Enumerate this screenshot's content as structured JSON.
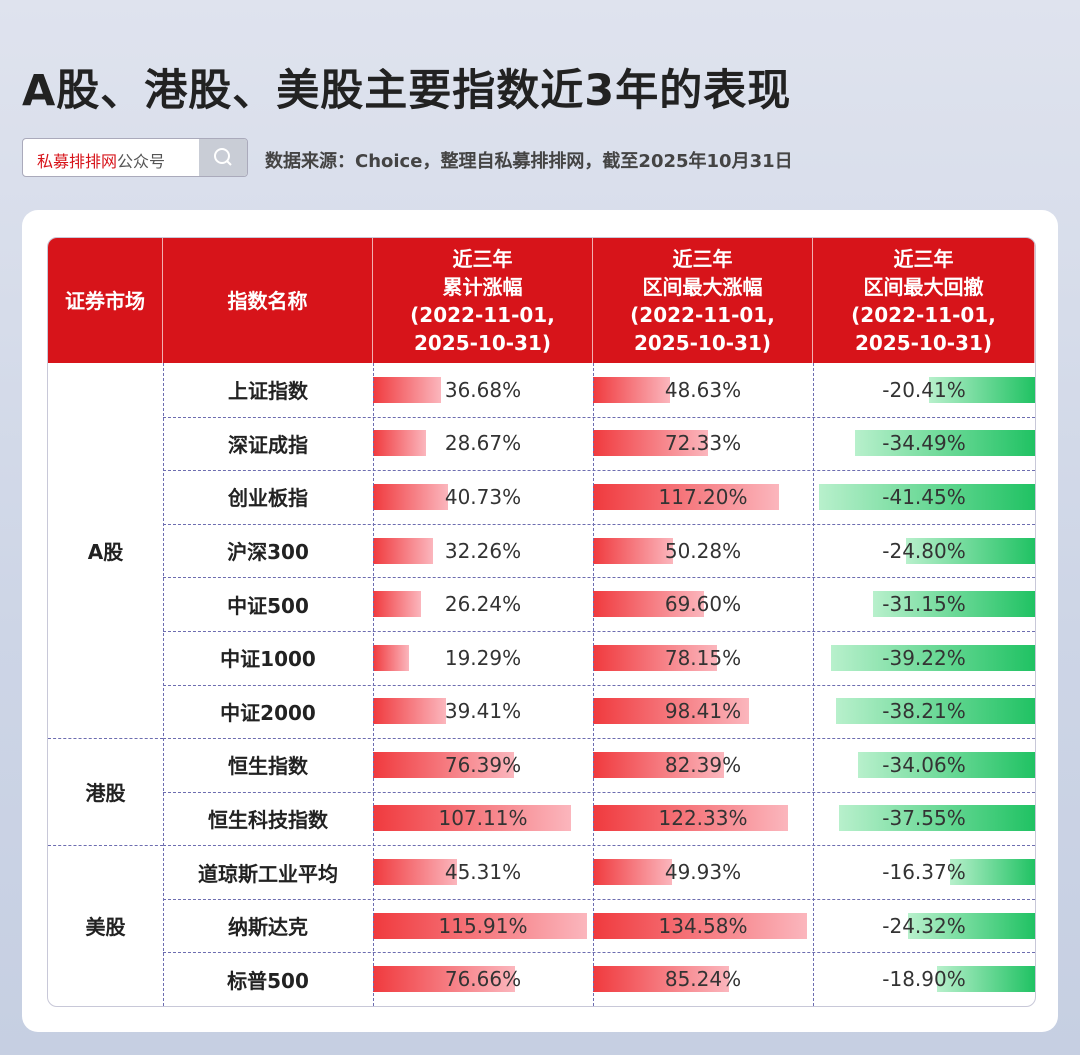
{
  "header": {
    "title": "A股、港股、美股主要指数近3年的表现",
    "search_brand": "私募排排网",
    "search_suffix": "公众号",
    "source": "数据来源：Choice，整理自私募排排网，截至2025年10月31日"
  },
  "table": {
    "columns": [
      [
        "证券市场"
      ],
      [
        "指数名称"
      ],
      [
        "近三年",
        "累计涨幅",
        "(2022-11-01,",
        "2025-10-31)"
      ],
      [
        "近三年",
        "区间最大涨幅",
        "(2022-11-01,",
        "2025-10-31)"
      ],
      [
        "近三年",
        "区间最大回撤",
        "(2022-11-01,",
        "2025-10-31)"
      ]
    ],
    "groups": [
      {
        "market": "A股",
        "rows": [
          {
            "name": "上证指数",
            "values": [
              36.68,
              48.63,
              -20.41
            ],
            "value_labels": [
              "36.68%",
              "48.63%",
              "-20.41%"
            ]
          },
          {
            "name": "深证成指",
            "values": [
              28.67,
              72.33,
              -34.49
            ],
            "value_labels": [
              "28.67%",
              "72.33%",
              "-34.49%"
            ]
          },
          {
            "name": "创业板指",
            "values": [
              40.73,
              117.2,
              -41.45
            ],
            "value_labels": [
              "40.73%",
              "117.20%",
              "-41.45%"
            ]
          },
          {
            "name": "沪深300",
            "values": [
              32.26,
              50.28,
              -24.8
            ],
            "value_labels": [
              "32.26%",
              "50.28%",
              "-24.80%"
            ]
          },
          {
            "name": "中证500",
            "values": [
              26.24,
              69.6,
              -31.15
            ],
            "value_labels": [
              "26.24%",
              "69.60%",
              "-31.15%"
            ]
          },
          {
            "name": "中证1000",
            "values": [
              19.29,
              78.15,
              -39.22
            ],
            "value_labels": [
              "19.29%",
              "78.15%",
              "-39.22%"
            ]
          },
          {
            "name": "中证2000",
            "values": [
              39.41,
              98.41,
              -38.21
            ],
            "value_labels": [
              "39.41%",
              "98.41%",
              "-38.21%"
            ]
          }
        ]
      },
      {
        "market": "港股",
        "rows": [
          {
            "name": "恒生指数",
            "values": [
              76.39,
              82.39,
              -34.06
            ],
            "value_labels": [
              "76.39%",
              "82.39%",
              "-34.06%"
            ]
          },
          {
            "name": "恒生科技指数",
            "values": [
              107.11,
              122.33,
              -37.55
            ],
            "value_labels": [
              "107.11%",
              "122.33%",
              "-37.55%"
            ]
          }
        ]
      },
      {
        "market": "美股",
        "rows": [
          {
            "name": "道琼斯工业平均",
            "values": [
              45.31,
              49.93,
              -16.37
            ],
            "value_labels": [
              "45.31%",
              "49.93%",
              "-16.37%"
            ]
          },
          {
            "name": "纳斯达克",
            "values": [
              115.91,
              134.58,
              -24.32
            ],
            "value_labels": [
              "115.91%",
              "134.58%",
              "-24.32%"
            ]
          },
          {
            "name": "标普500",
            "values": [
              76.66,
              85.24,
              -18.9
            ],
            "value_labels": [
              "76.66%",
              "85.24%",
              "-18.90%"
            ]
          }
        ]
      }
    ]
  }
}
